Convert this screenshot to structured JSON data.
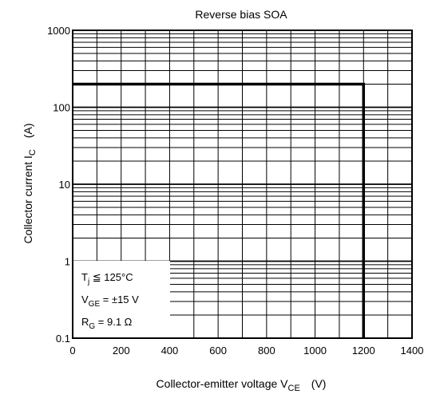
{
  "chart_data": {
    "type": "line",
    "title": "Reverse bias SOA",
    "xlabel": {
      "text": "Collector-emitter voltage  V",
      "sub": "CE",
      "unit": "(V)"
    },
    "ylabel": {
      "text": "Collector current  I",
      "sub": "C",
      "unit": "(A)"
    },
    "x_scale": "linear",
    "y_scale": "log",
    "xlim": [
      0,
      1400
    ],
    "ylim": [
      0.1,
      1000
    ],
    "x_ticks": [
      0,
      200,
      400,
      600,
      800,
      1000,
      1200,
      1400
    ],
    "x_tick_labels": [
      "0",
      "200",
      "400",
      "600",
      "800",
      "1000",
      "1200",
      "1400"
    ],
    "y_ticks": [
      0.1,
      1,
      10,
      100,
      1000
    ],
    "y_tick_labels": [
      "0.1",
      "1",
      "10",
      "100",
      "1000"
    ],
    "grid": true,
    "series": [
      {
        "x": [
          0,
          1200,
          1200
        ],
        "y": [
          200,
          200,
          0.1
        ]
      }
    ],
    "annotation": {
      "position": "bottom-left",
      "lines": [
        {
          "main": "T",
          "sub": "j",
          "rest": " ≦ 125°C"
        },
        {
          "main": "V",
          "sub": "GE",
          "rest": " = ±15 V"
        },
        {
          "main": "R",
          "sub": "G",
          "rest": " = 9.1 Ω"
        }
      ]
    }
  }
}
